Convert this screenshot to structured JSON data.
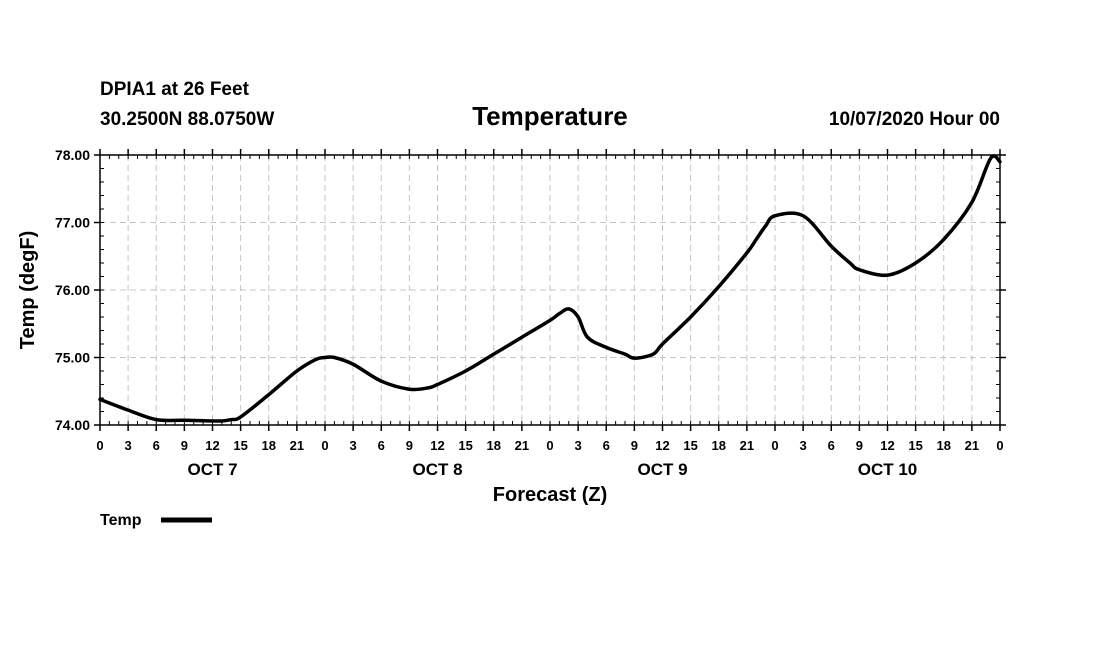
{
  "header": {
    "station": "DPIA1 at 26 Feet",
    "location": "30.2500N 88.0750W",
    "datetime": "10/07/2020 Hour 00"
  },
  "chart_data": {
    "type": "line",
    "title": "Temperature",
    "xlabel": "Forecast (Z)",
    "ylabel": "Temp (degF)",
    "x_hours": [
      0,
      3,
      6,
      9,
      12,
      15,
      18,
      21,
      24,
      27,
      30,
      33,
      36,
      39,
      42,
      45,
      48,
      51,
      54,
      57,
      60,
      63,
      66,
      69,
      72,
      75,
      78,
      81,
      84,
      87,
      90,
      93,
      96
    ],
    "xtick_labels": [
      "0",
      "3",
      "6",
      "9",
      "12",
      "15",
      "18",
      "21",
      "0",
      "3",
      "6",
      "9",
      "12",
      "15",
      "18",
      "21",
      "0",
      "3",
      "6",
      "9",
      "12",
      "15",
      "18",
      "21",
      "0",
      "3",
      "6",
      "9",
      "12",
      "15",
      "18",
      "21",
      "0"
    ],
    "day_labels": [
      {
        "label": "OCT 7",
        "hour": 12
      },
      {
        "label": "OCT 8",
        "hour": 36
      },
      {
        "label": "OCT 9",
        "hour": 60
      },
      {
        "label": "OCT 10",
        "hour": 84
      }
    ],
    "ylim": [
      74.0,
      78.0
    ],
    "xlim": [
      0,
      96
    ],
    "yticks": [
      "74.00",
      "75.00",
      "76.00",
      "77.00",
      "78.00"
    ],
    "grid": true,
    "legend_position": "below-left",
    "series": [
      {
        "name": "Temp",
        "color": "#000000",
        "x": [
          0,
          3,
          6,
          9,
          12,
          13,
          14,
          15,
          18,
          21,
          23,
          24,
          25,
          27,
          30,
          33,
          35,
          36,
          39,
          42,
          45,
          48,
          49,
          50,
          51,
          52,
          54,
          56,
          57,
          59,
          60,
          63,
          66,
          69,
          70,
          71,
          72,
          75,
          78,
          80,
          81,
          84,
          87,
          90,
          93,
          95,
          96
        ],
        "y": [
          74.38,
          74.22,
          74.08,
          74.07,
          74.06,
          74.06,
          74.08,
          74.12,
          74.45,
          74.8,
          74.97,
          75.0,
          75.0,
          74.9,
          74.65,
          74.53,
          74.55,
          74.6,
          74.8,
          75.05,
          75.3,
          75.55,
          75.65,
          75.72,
          75.6,
          75.3,
          75.15,
          75.05,
          74.99,
          75.05,
          75.2,
          75.6,
          76.05,
          76.55,
          76.75,
          76.95,
          77.1,
          77.1,
          76.65,
          76.4,
          76.3,
          76.22,
          76.4,
          76.75,
          77.3,
          77.95,
          77.9
        ]
      }
    ]
  }
}
